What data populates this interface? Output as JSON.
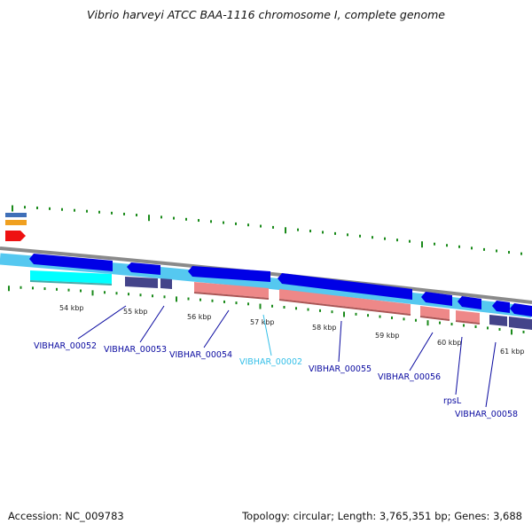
{
  "title": "Vibrio harveyi ATCC BAA-1116 chromosome I, complete genome",
  "footer": {
    "accession": "Accession: NC_009783",
    "summary": "Topology: circular; Length: 3,765,351 bp; Genes: 3,688"
  },
  "colors": {
    "cds_forward": "#0000e6",
    "cds_track": "#55c8f0",
    "gene_cyan": "#00ffff",
    "gene_navy": "#44448a",
    "gene_pink": "#ee8888",
    "backbone": "#888888",
    "tick": "#1a8a1a",
    "label_default": "#0a0aa0",
    "label_highlight": "#33bfe8"
  },
  "kbp_ticks": [
    "54 kbp",
    "55 kbp",
    "56 kbp",
    "57 kbp",
    "58 kbp",
    "59 kbp",
    "60 kbp",
    "61 kbp"
  ],
  "gene_labels": [
    {
      "text": "VIBHAR_00052",
      "highlight": false
    },
    {
      "text": "VIBHAR_00053",
      "highlight": false
    },
    {
      "text": "VIBHAR_00054",
      "highlight": false
    },
    {
      "text": "VIBHAR_00002",
      "highlight": true
    },
    {
      "text": "VIBHAR_00055",
      "highlight": false
    },
    {
      "text": "VIBHAR_00056",
      "highlight": false
    },
    {
      "text": "rpsL",
      "highlight": false
    },
    {
      "text": "VIBHAR_00058",
      "highlight": false
    }
  ]
}
